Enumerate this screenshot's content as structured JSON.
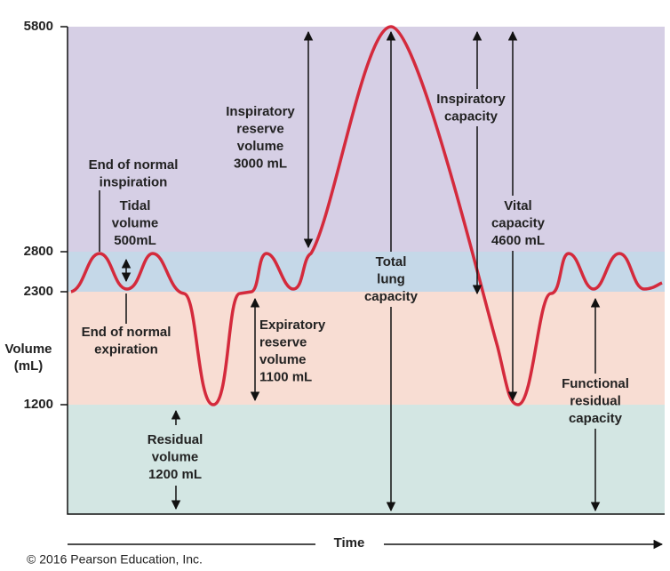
{
  "axis": {
    "y_label": [
      "Volume",
      "(mL)"
    ],
    "y_ticks": [
      "5800",
      "2800",
      "2300",
      "1200"
    ],
    "x_label": "Time"
  },
  "annotations": [
    {
      "lines": [
        "End of normal",
        "inspiration"
      ]
    },
    {
      "lines": [
        "Tidal",
        "volume",
        "500mL"
      ]
    },
    {
      "lines": [
        "End of normal",
        "expiration"
      ]
    },
    {
      "lines": [
        "Inspiratory",
        "reserve",
        "volume",
        "3000 mL"
      ]
    },
    {
      "lines": [
        "Expiratory",
        "reserve",
        "volume",
        "1100 mL"
      ]
    },
    {
      "lines": [
        "Residual",
        "volume",
        "1200 mL"
      ]
    },
    {
      "lines": [
        "Total",
        "lung",
        "capacity"
      ]
    },
    {
      "lines": [
        "Inspiratory",
        "capacity"
      ]
    },
    {
      "lines": [
        "Vital",
        "capacity",
        "4600 mL"
      ]
    },
    {
      "lines": [
        "Functional",
        "residual",
        "capacity"
      ]
    }
  ],
  "credit": "© 2016 Pearson Education, Inc."
}
